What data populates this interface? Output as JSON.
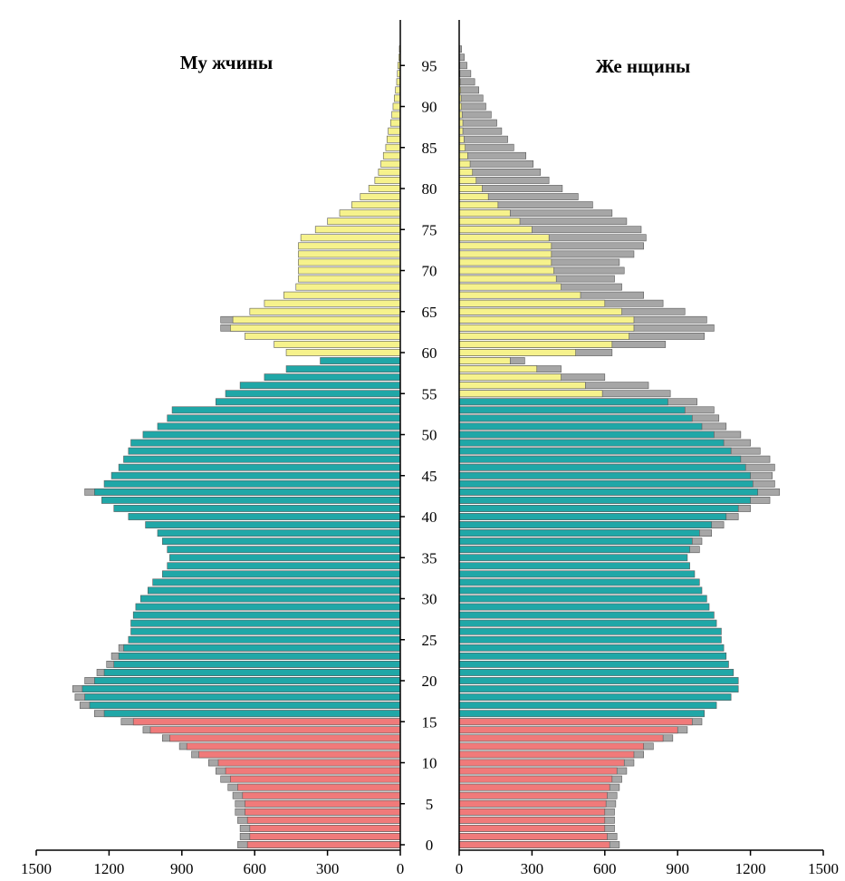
{
  "chart_data": {
    "type": "bar",
    "orientation": "horizontal",
    "left_title": "Му жчины",
    "right_title": "Же нщины",
    "age_ticks": [
      "0",
      "5",
      "10",
      "15",
      "20",
      "25",
      "30",
      "35",
      "40",
      "45",
      "50",
      "55",
      "60",
      "65",
      "70",
      "75",
      "80",
      "85",
      "90",
      "95"
    ],
    "left_ticks": [
      "1500",
      "1200",
      "900",
      "600",
      "300",
      "0"
    ],
    "right_ticks": [
      "0",
      "300",
      "600",
      "900",
      "1200",
      "1500"
    ],
    "xlim": [
      0,
      1500
    ],
    "ylim": [
      0,
      100
    ],
    "group_colors": {
      "under_working": "#f07a7a",
      "working": "#20a7a7",
      "over_working": "#f6f28c",
      "excess": "#a6a6a6"
    },
    "age_groups": [
      {
        "name": "under_working",
        "from_age": 0,
        "to_age": 15
      },
      {
        "name": "working_men",
        "from_age": 16,
        "to_age": 59
      },
      {
        "name": "working_women",
        "from_age": 16,
        "to_age": 54
      },
      {
        "name": "over_working",
        "from_age": 60
      }
    ],
    "ages": [
      0,
      1,
      2,
      3,
      4,
      5,
      6,
      7,
      8,
      9,
      10,
      11,
      12,
      13,
      14,
      15,
      16,
      17,
      18,
      19,
      20,
      21,
      22,
      23,
      24,
      25,
      26,
      27,
      28,
      29,
      30,
      31,
      32,
      33,
      34,
      35,
      36,
      37,
      38,
      39,
      40,
      41,
      42,
      43,
      44,
      45,
      46,
      47,
      48,
      49,
      50,
      51,
      52,
      53,
      54,
      55,
      56,
      57,
      58,
      59,
      60,
      61,
      62,
      63,
      64,
      65,
      66,
      67,
      68,
      69,
      70,
      71,
      72,
      73,
      74,
      75,
      76,
      77,
      78,
      79,
      80,
      81,
      82,
      83,
      84,
      85,
      86,
      87,
      88,
      89,
      90,
      91,
      92,
      93,
      94,
      95,
      96,
      97
    ],
    "series": [
      {
        "name": "Му жчины",
        "values": [
          630,
          620,
          620,
          630,
          640,
          640,
          650,
          670,
          700,
          720,
          750,
          830,
          880,
          950,
          1030,
          1100,
          1220,
          1280,
          1300,
          1310,
          1260,
          1220,
          1180,
          1160,
          1140,
          1120,
          1110,
          1110,
          1100,
          1090,
          1070,
          1040,
          1020,
          980,
          960,
          950,
          960,
          980,
          1000,
          1050,
          1120,
          1180,
          1230,
          1260,
          1220,
          1190,
          1160,
          1140,
          1120,
          1110,
          1060,
          1000,
          960,
          940,
          760,
          720,
          660,
          560,
          470,
          330,
          470,
          520,
          640,
          700,
          690,
          620,
          560,
          480,
          430,
          420,
          420,
          420,
          420,
          420,
          410,
          350,
          300,
          250,
          200,
          165,
          130,
          105,
          90,
          80,
          70,
          60,
          55,
          50,
          40,
          35,
          30,
          25,
          20,
          15,
          12,
          10,
          6,
          4
        ],
        "excess": [
          40,
          40,
          40,
          40,
          40,
          40,
          40,
          40,
          40,
          40,
          40,
          30,
          30,
          30,
          30,
          50,
          40,
          40,
          40,
          40,
          40,
          30,
          30,
          30,
          20,
          0,
          0,
          0,
          0,
          0,
          0,
          0,
          0,
          0,
          0,
          0,
          0,
          0,
          0,
          0,
          0,
          0,
          0,
          40,
          0,
          0,
          0,
          0,
          0,
          0,
          0,
          0,
          0,
          0,
          0,
          0,
          0,
          0,
          0,
          0,
          0,
          0,
          0,
          40,
          50,
          0,
          0,
          0,
          0,
          0,
          0,
          0,
          0,
          0,
          0,
          0,
          0,
          0,
          0,
          0,
          0,
          0,
          0,
          0,
          0,
          0,
          0,
          0,
          0,
          0,
          0,
          0,
          0,
          0,
          0,
          0,
          0,
          0
        ]
      },
      {
        "name": "Же нщины",
        "values": [
          620,
          610,
          600,
          600,
          600,
          605,
          610,
          620,
          630,
          650,
          680,
          720,
          760,
          840,
          900,
          960,
          1010,
          1060,
          1120,
          1150,
          1150,
          1130,
          1110,
          1100,
          1090,
          1080,
          1080,
          1060,
          1050,
          1030,
          1020,
          1000,
          990,
          970,
          950,
          940,
          950,
          960,
          990,
          1040,
          1100,
          1150,
          1200,
          1230,
          1210,
          1200,
          1180,
          1160,
          1120,
          1090,
          1050,
          1000,
          960,
          930,
          860,
          590,
          520,
          420,
          320,
          210,
          480,
          630,
          700,
          720,
          720,
          670,
          600,
          500,
          420,
          400,
          390,
          380,
          380,
          380,
          370,
          300,
          250,
          210,
          160,
          120,
          95,
          70,
          55,
          45,
          35,
          25,
          20,
          15,
          15,
          12,
          10,
          8,
          6,
          4,
          3,
          2,
          1,
          0
        ],
        "excess": [
          40,
          40,
          40,
          40,
          40,
          40,
          40,
          40,
          40,
          40,
          40,
          40,
          40,
          40,
          40,
          40,
          0,
          0,
          0,
          0,
          0,
          0,
          0,
          0,
          0,
          0,
          0,
          0,
          0,
          0,
          0,
          0,
          0,
          0,
          0,
          0,
          0,
          0,
          0,
          0,
          0,
          0,
          0,
          0,
          0,
          0,
          0,
          0,
          0,
          0,
          0,
          0,
          0,
          0,
          0,
          0,
          0,
          0,
          0,
          0,
          0,
          0,
          0,
          0,
          0,
          0,
          0,
          0,
          0,
          0,
          0,
          0,
          0,
          0,
          0,
          0,
          0,
          0,
          0,
          0,
          0,
          0,
          0,
          0,
          0,
          0,
          0,
          0,
          0,
          0,
          0,
          0,
          0,
          0,
          0,
          0,
          0,
          0
        ],
        "gray_extra": [
          0,
          0,
          0,
          0,
          0,
          0,
          0,
          0,
          0,
          0,
          0,
          0,
          0,
          0,
          0,
          0,
          0,
          0,
          0,
          0,
          0,
          0,
          0,
          0,
          0,
          0,
          0,
          0,
          0,
          0,
          0,
          0,
          0,
          0,
          0,
          0,
          40,
          40,
          50,
          50,
          50,
          50,
          80,
          90,
          90,
          90,
          120,
          120,
          120,
          110,
          110,
          100,
          110,
          120,
          120,
          280,
          260,
          180,
          100,
          60,
          150,
          220,
          310,
          330,
          300,
          260,
          240,
          260,
          250,
          240,
          290,
          280,
          340,
          380,
          400,
          450,
          440,
          420,
          390,
          370,
          330,
          300,
          280,
          260,
          240,
          200,
          180,
          160,
          140,
          120,
          100,
          90,
          75,
          60,
          45,
          30,
          20,
          10
        ]
      }
    ]
  }
}
